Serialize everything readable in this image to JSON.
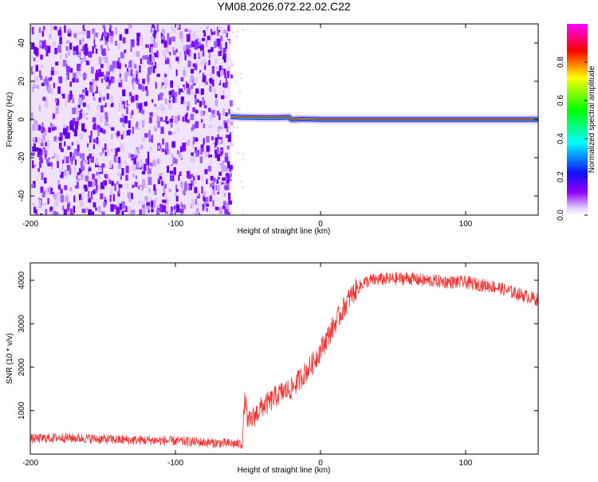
{
  "title": "YM08.2026.072.22.02.C22",
  "colorbar": {
    "label": "Normalized spectral amplitude",
    "ticks": [
      "0.0",
      "0.2",
      "0.4",
      "0.6",
      "0.8"
    ],
    "tick_values": [
      0.0,
      0.2,
      0.4,
      0.6,
      0.8
    ],
    "range": [
      0,
      1
    ]
  },
  "chart_data": [
    {
      "type": "heatmap",
      "title": "YM08.2026.072.22.02.C22",
      "xlabel": "Height of straight line (km)",
      "ylabel": "Frequency (Hz)",
      "xlim": [
        -200,
        150
      ],
      "ylim": [
        -50,
        50
      ],
      "x_ticks": [
        -200,
        -100,
        0,
        100
      ],
      "x_tick_labels": [
        "-200",
        "-100",
        "0",
        "100"
      ],
      "y_ticks": [
        -40,
        -20,
        0,
        20,
        40
      ],
      "y_tick_labels": [
        "-40",
        "-20",
        "0",
        "20",
        "40"
      ],
      "colorscale": [
        "#ffffff",
        "#d8b8f8",
        "#7a00ff",
        "#1010ff",
        "#00ffff",
        "#00ff00",
        "#ffff00",
        "#ff0000",
        "#ff00ff"
      ],
      "regions": [
        {
          "name": "noise",
          "x_range": [
            -200,
            -62
          ],
          "y_range": [
            -50,
            50
          ],
          "amplitude_range": [
            0.0,
            0.15
          ]
        },
        {
          "name": "signal",
          "x_range": [
            -62,
            150
          ],
          "frequency_hz": 0,
          "amplitude": 1.0,
          "note": "narrow band near 0 Hz"
        }
      ],
      "signal_line": {
        "x": [
          -62,
          -55,
          -40,
          -30,
          -22,
          -20,
          -12,
          0,
          20,
          60,
          100,
          150
        ],
        "y": [
          1.5,
          1.2,
          1.0,
          1.0,
          1.2,
          0.0,
          0.2,
          0.0,
          0.0,
          0.0,
          0.0,
          0.0
        ]
      }
    },
    {
      "type": "line",
      "xlabel": "Height of straight line (km)",
      "ylabel": "SNR (10 * v/v)",
      "xlim": [
        -200,
        150
      ],
      "ylim": [
        0,
        4400
      ],
      "x_ticks": [
        -200,
        -100,
        0,
        100
      ],
      "x_tick_labels": [
        "-200",
        "-100",
        "0",
        "100"
      ],
      "y_ticks": [
        1000,
        2000,
        3000,
        4000
      ],
      "y_tick_labels": [
        "1000",
        "2000",
        "3000",
        "4000"
      ],
      "color": "#ee3333",
      "series": [
        {
          "name": "SNR",
          "x": [
            -200,
            -180,
            -160,
            -140,
            -120,
            -100,
            -80,
            -60,
            -54,
            -52,
            -50,
            -45,
            -40,
            -35,
            -30,
            -25,
            -20,
            -15,
            -10,
            -5,
            0,
            5,
            10,
            15,
            20,
            25,
            30,
            35,
            40,
            50,
            60,
            70,
            80,
            90,
            100,
            110,
            120,
            130,
            140,
            150
          ],
          "y": [
            350,
            380,
            360,
            330,
            320,
            300,
            270,
            240,
            230,
            1300,
            700,
            900,
            1100,
            1200,
            1350,
            1450,
            1500,
            1700,
            1900,
            2100,
            2400,
            2700,
            3000,
            3300,
            3600,
            3800,
            3950,
            4000,
            4020,
            4030,
            4050,
            4000,
            3980,
            3960,
            3950,
            3900,
            3850,
            3750,
            3650,
            3550
          ]
        }
      ]
    }
  ]
}
